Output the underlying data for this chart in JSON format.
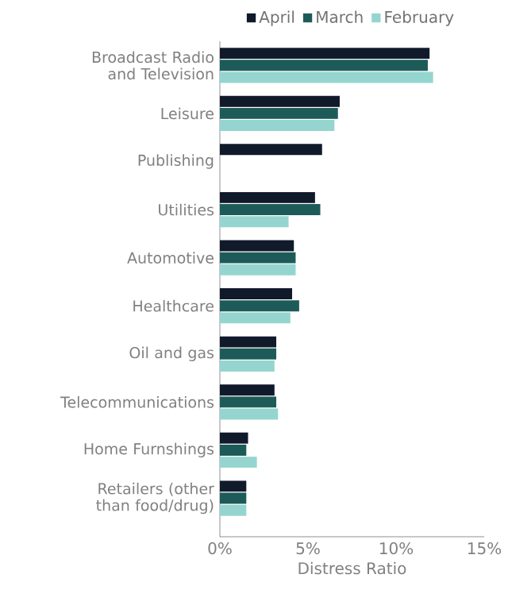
{
  "chart_data": {
    "type": "bar",
    "orientation": "horizontal",
    "xlabel": "Distress Ratio",
    "categories": [
      "Broadcast Radio and Television",
      "Leisure",
      "Publishing",
      "Utilities",
      "Automotive",
      "Healthcare",
      "Oil and gas",
      "Telecommunications",
      "Home Furnshings",
      "Retailers (other than food/drug)"
    ],
    "series": [
      {
        "name": "April",
        "color": "#101a2b",
        "values": [
          11.9,
          6.8,
          5.8,
          5.4,
          4.2,
          4.1,
          3.2,
          3.1,
          1.6,
          1.5
        ]
      },
      {
        "name": "March",
        "color": "#1d5b59",
        "values": [
          11.8,
          6.7,
          null,
          5.7,
          4.3,
          4.5,
          3.2,
          3.2,
          1.5,
          1.5
        ]
      },
      {
        "name": "February",
        "color": "#95d5cf",
        "values": [
          12.1,
          6.5,
          null,
          3.9,
          4.3,
          4.0,
          3.1,
          3.3,
          2.1,
          1.5
        ]
      }
    ],
    "xlim": [
      0,
      15
    ],
    "xticks": [
      {
        "value": 0,
        "label": "0%"
      },
      {
        "value": 5,
        "label": "5%"
      },
      {
        "value": 10,
        "label": "10%"
      },
      {
        "value": 15,
        "label": "15%"
      }
    ],
    "grid": false,
    "legend": "top"
  }
}
